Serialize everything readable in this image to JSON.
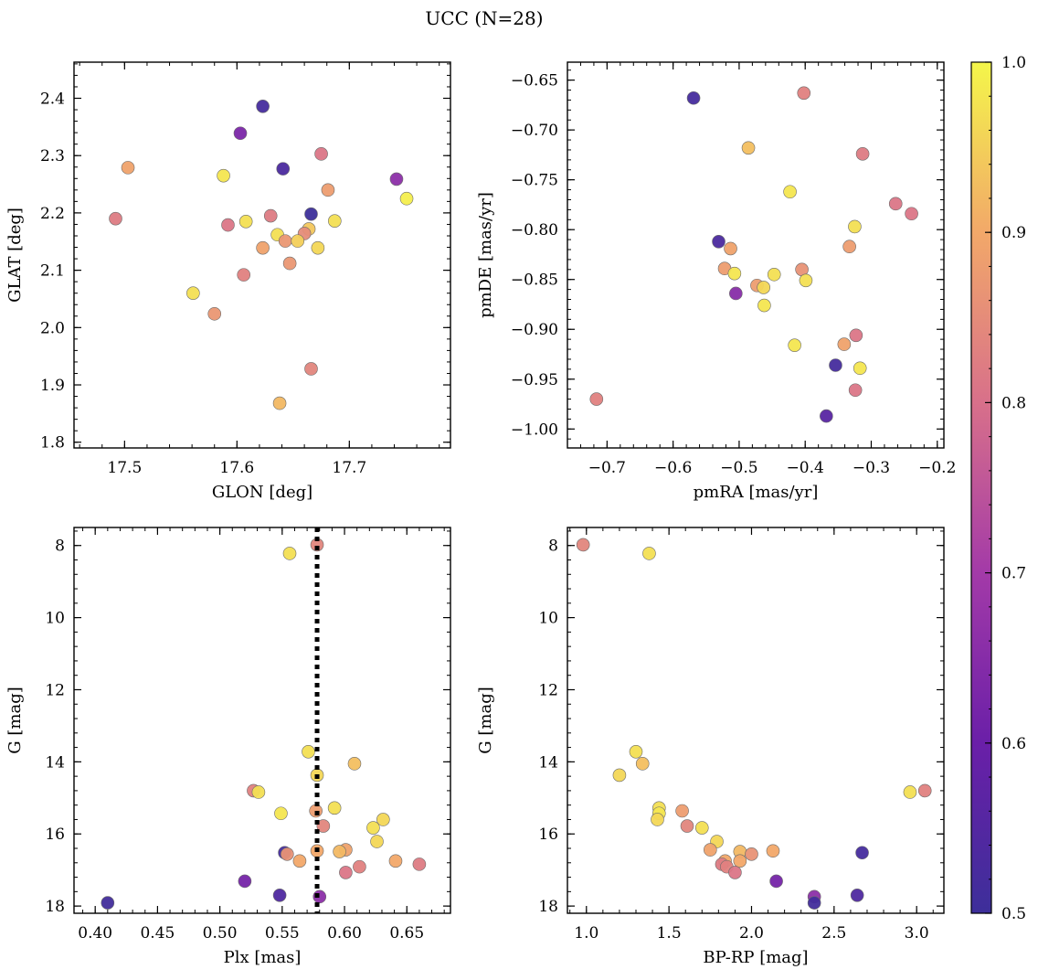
{
  "chart_data": {
    "title": "UCC (N=28)",
    "colorbar": {
      "vmin": 0.5,
      "vmax": 1.0,
      "colormap": "plasma",
      "ticks": [
        0.5,
        0.6,
        0.7,
        0.8,
        0.9,
        1.0
      ],
      "tick_labels": [
        "0.5",
        "0.6",
        "0.7",
        "0.8",
        "0.9",
        "1.0"
      ]
    },
    "panels": [
      {
        "id": "glon-glat",
        "type": "scatter",
        "xlabel": "GLON [deg]",
        "ylabel": "GLAT [deg]",
        "xlim": [
          17.455,
          17.79
        ],
        "ylim": [
          1.79,
          2.463
        ],
        "xticks": [
          17.5,
          17.6,
          17.7
        ],
        "xtick_labels": [
          "17.5",
          "17.6",
          "17.7"
        ],
        "yticks": [
          1.8,
          1.9,
          2.0,
          2.1,
          2.2,
          2.3,
          2.4
        ],
        "ytick_labels": [
          "1.8",
          "1.9",
          "2.0",
          "2.1",
          "2.2",
          "2.3",
          "2.4"
        ],
        "invert_y": false,
        "points": [
          {
            "x": 17.623,
            "y": 2.386,
            "c": 0.52
          },
          {
            "x": 17.603,
            "y": 2.339,
            "c": 0.63
          },
          {
            "x": 17.675,
            "y": 2.303,
            "c": 0.81
          },
          {
            "x": 17.641,
            "y": 2.277,
            "c": 0.53
          },
          {
            "x": 17.503,
            "y": 2.279,
            "c": 0.89
          },
          {
            "x": 17.588,
            "y": 2.265,
            "c": 0.98
          },
          {
            "x": 17.742,
            "y": 2.259,
            "c": 0.66
          },
          {
            "x": 17.681,
            "y": 2.24,
            "c": 0.88
          },
          {
            "x": 17.751,
            "y": 2.225,
            "c": 0.99
          },
          {
            "x": 17.666,
            "y": 2.198,
            "c": 0.5
          },
          {
            "x": 17.63,
            "y": 2.195,
            "c": 0.82
          },
          {
            "x": 17.492,
            "y": 2.19,
            "c": 0.82
          },
          {
            "x": 17.608,
            "y": 2.185,
            "c": 0.97
          },
          {
            "x": 17.687,
            "y": 2.186,
            "c": 0.97
          },
          {
            "x": 17.592,
            "y": 2.179,
            "c": 0.81
          },
          {
            "x": 17.664,
            "y": 2.172,
            "c": 0.94
          },
          {
            "x": 17.66,
            "y": 2.164,
            "c": 0.85
          },
          {
            "x": 17.636,
            "y": 2.162,
            "c": 0.97
          },
          {
            "x": 17.643,
            "y": 2.151,
            "c": 0.87
          },
          {
            "x": 17.654,
            "y": 2.151,
            "c": 0.95
          },
          {
            "x": 17.623,
            "y": 2.139,
            "c": 0.89
          },
          {
            "x": 17.672,
            "y": 2.139,
            "c": 0.96
          },
          {
            "x": 17.647,
            "y": 2.112,
            "c": 0.87
          },
          {
            "x": 17.606,
            "y": 2.092,
            "c": 0.83
          },
          {
            "x": 17.561,
            "y": 2.06,
            "c": 0.97
          },
          {
            "x": 17.58,
            "y": 2.024,
            "c": 0.87
          },
          {
            "x": 17.666,
            "y": 1.928,
            "c": 0.84
          },
          {
            "x": 17.638,
            "y": 1.868,
            "c": 0.92
          }
        ]
      },
      {
        "id": "pmra-pmde",
        "type": "scatter",
        "xlabel": "pmRA [mas/yr]",
        "ylabel": "pmDE [mas/yr]",
        "xlim": [
          -0.76,
          -0.19
        ],
        "ylim": [
          -1.019,
          -0.632
        ],
        "xticks": [
          -0.7,
          -0.6,
          -0.5,
          -0.4,
          -0.3,
          -0.2
        ],
        "xtick_labels": [
          "−0.7",
          "−0.6",
          "−0.5",
          "−0.4",
          "−0.3",
          "−0.2"
        ],
        "yticks": [
          -1.0,
          -0.95,
          -0.9,
          -0.85,
          -0.8,
          -0.75,
          -0.7,
          -0.65
        ],
        "ytick_labels": [
          "−1.00",
          "−0.95",
          "−0.90",
          "−0.85",
          "−0.80",
          "−0.75",
          "−0.70",
          "−0.65"
        ],
        "invert_y": false,
        "points": [
          {
            "x": -0.569,
            "y": -0.668,
            "c": 0.52
          },
          {
            "x": -0.402,
            "y": -0.663,
            "c": 0.83
          },
          {
            "x": -0.486,
            "y": -0.718,
            "c": 0.93
          },
          {
            "x": -0.313,
            "y": -0.724,
            "c": 0.82
          },
          {
            "x": -0.423,
            "y": -0.762,
            "c": 0.98
          },
          {
            "x": -0.263,
            "y": -0.774,
            "c": 0.81
          },
          {
            "x": -0.239,
            "y": -0.784,
            "c": 0.81
          },
          {
            "x": -0.325,
            "y": -0.797,
            "c": 0.97
          },
          {
            "x": -0.531,
            "y": -0.812,
            "c": 0.53
          },
          {
            "x": -0.513,
            "y": -0.819,
            "c": 0.89
          },
          {
            "x": -0.333,
            "y": -0.817,
            "c": 0.88
          },
          {
            "x": -0.522,
            "y": -0.839,
            "c": 0.88
          },
          {
            "x": -0.405,
            "y": -0.84,
            "c": 0.86
          },
          {
            "x": -0.507,
            "y": -0.844,
            "c": 0.98
          },
          {
            "x": -0.447,
            "y": -0.845,
            "c": 0.97
          },
          {
            "x": -0.399,
            "y": -0.851,
            "c": 0.97
          },
          {
            "x": -0.473,
            "y": -0.856,
            "c": 0.88
          },
          {
            "x": -0.463,
            "y": -0.858,
            "c": 0.96
          },
          {
            "x": -0.505,
            "y": -0.864,
            "c": 0.65
          },
          {
            "x": -0.462,
            "y": -0.876,
            "c": 0.98
          },
          {
            "x": -0.323,
            "y": -0.906,
            "c": 0.81
          },
          {
            "x": -0.416,
            "y": -0.916,
            "c": 0.98
          },
          {
            "x": -0.341,
            "y": -0.915,
            "c": 0.89
          },
          {
            "x": -0.354,
            "y": -0.936,
            "c": 0.52
          },
          {
            "x": -0.317,
            "y": -0.939,
            "c": 0.98
          },
          {
            "x": -0.716,
            "y": -0.97,
            "c": 0.83
          },
          {
            "x": -0.324,
            "y": -0.961,
            "c": 0.81
          },
          {
            "x": -0.368,
            "y": -0.987,
            "c": 0.56
          }
        ]
      },
      {
        "id": "plx-g",
        "type": "scatter",
        "xlabel": "Plx [mas]",
        "ylabel": "G [mag]",
        "xlim": [
          0.383,
          0.685
        ],
        "ylim": [
          18.2,
          7.5
        ],
        "xticks": [
          0.4,
          0.45,
          0.5,
          0.55,
          0.6,
          0.65
        ],
        "xtick_labels": [
          "0.40",
          "0.45",
          "0.50",
          "0.55",
          "0.60",
          "0.65"
        ],
        "yticks": [
          8,
          10,
          12,
          14,
          16,
          18
        ],
        "ytick_labels": [
          "8",
          "10",
          "12",
          "14",
          "16",
          "18"
        ],
        "invert_y": true,
        "vline": {
          "x": 0.578,
          "style": "dotted"
        },
        "points": [
          {
            "x": 0.578,
            "y": 7.98,
            "c": 0.84
          },
          {
            "x": 0.556,
            "y": 8.22,
            "c": 0.97
          },
          {
            "x": 0.571,
            "y": 13.72,
            "c": 0.97
          },
          {
            "x": 0.608,
            "y": 14.05,
            "c": 0.93
          },
          {
            "x": 0.578,
            "y": 14.37,
            "c": 0.96
          },
          {
            "x": 0.527,
            "y": 14.8,
            "c": 0.83
          },
          {
            "x": 0.531,
            "y": 14.84,
            "c": 0.97
          },
          {
            "x": 0.592,
            "y": 15.28,
            "c": 0.97
          },
          {
            "x": 0.577,
            "y": 15.36,
            "c": 0.88
          },
          {
            "x": 0.549,
            "y": 15.43,
            "c": 0.98
          },
          {
            "x": 0.631,
            "y": 15.6,
            "c": 0.96
          },
          {
            "x": 0.583,
            "y": 15.78,
            "c": 0.84
          },
          {
            "x": 0.623,
            "y": 15.83,
            "c": 0.97
          },
          {
            "x": 0.626,
            "y": 16.21,
            "c": 0.96
          },
          {
            "x": 0.601,
            "y": 16.44,
            "c": 0.89
          },
          {
            "x": 0.578,
            "y": 16.47,
            "c": 0.9
          },
          {
            "x": 0.596,
            "y": 16.49,
            "c": 0.92
          },
          {
            "x": 0.552,
            "y": 16.52,
            "c": 0.52
          },
          {
            "x": 0.554,
            "y": 16.56,
            "c": 0.86
          },
          {
            "x": 0.564,
            "y": 16.75,
            "c": 0.9
          },
          {
            "x": 0.641,
            "y": 16.75,
            "c": 0.9
          },
          {
            "x": 0.66,
            "y": 16.84,
            "c": 0.82
          },
          {
            "x": 0.612,
            "y": 16.91,
            "c": 0.83
          },
          {
            "x": 0.601,
            "y": 17.07,
            "c": 0.81
          },
          {
            "x": 0.52,
            "y": 17.31,
            "c": 0.62
          },
          {
            "x": 0.548,
            "y": 17.7,
            "c": 0.54
          },
          {
            "x": 0.58,
            "y": 17.74,
            "c": 0.66
          },
          {
            "x": 0.41,
            "y": 17.91,
            "c": 0.51
          }
        ]
      },
      {
        "id": "bprp-g",
        "type": "scatter",
        "xlabel": "BP-RP [mag]",
        "ylabel": "G [mag]",
        "xlim": [
          0.885,
          3.165
        ],
        "ylim": [
          18.2,
          7.5
        ],
        "xticks": [
          1.0,
          1.5,
          2.0,
          2.5,
          3.0
        ],
        "xtick_labels": [
          "1.0",
          "1.5",
          "2.0",
          "2.5",
          "3.0"
        ],
        "yticks": [
          8,
          10,
          12,
          14,
          16,
          18
        ],
        "ytick_labels": [
          "8",
          "10",
          "12",
          "14",
          "16",
          "18"
        ],
        "invert_y": true,
        "points": [
          {
            "x": 0.98,
            "y": 7.98,
            "c": 0.84
          },
          {
            "x": 1.38,
            "y": 8.22,
            "c": 0.97
          },
          {
            "x": 1.3,
            "y": 13.72,
            "c": 0.97
          },
          {
            "x": 1.34,
            "y": 14.05,
            "c": 0.93
          },
          {
            "x": 1.2,
            "y": 14.37,
            "c": 0.96
          },
          {
            "x": 3.05,
            "y": 14.8,
            "c": 0.83
          },
          {
            "x": 2.96,
            "y": 14.84,
            "c": 0.97
          },
          {
            "x": 1.44,
            "y": 15.28,
            "c": 0.97
          },
          {
            "x": 1.58,
            "y": 15.36,
            "c": 0.88
          },
          {
            "x": 1.44,
            "y": 15.43,
            "c": 0.98
          },
          {
            "x": 1.43,
            "y": 15.6,
            "c": 0.96
          },
          {
            "x": 1.61,
            "y": 15.78,
            "c": 0.84
          },
          {
            "x": 1.7,
            "y": 15.83,
            "c": 0.97
          },
          {
            "x": 1.79,
            "y": 16.21,
            "c": 0.96
          },
          {
            "x": 1.75,
            "y": 16.44,
            "c": 0.89
          },
          {
            "x": 2.13,
            "y": 16.47,
            "c": 0.9
          },
          {
            "x": 1.93,
            "y": 16.49,
            "c": 0.92
          },
          {
            "x": 2.67,
            "y": 16.52,
            "c": 0.52
          },
          {
            "x": 2.0,
            "y": 16.56,
            "c": 0.86
          },
          {
            "x": 1.84,
            "y": 16.75,
            "c": 0.9
          },
          {
            "x": 1.93,
            "y": 16.75,
            "c": 0.9
          },
          {
            "x": 1.82,
            "y": 16.84,
            "c": 0.82
          },
          {
            "x": 1.85,
            "y": 16.91,
            "c": 0.83
          },
          {
            "x": 1.9,
            "y": 17.07,
            "c": 0.81
          },
          {
            "x": 2.15,
            "y": 17.31,
            "c": 0.62
          },
          {
            "x": 2.64,
            "y": 17.7,
            "c": 0.54
          },
          {
            "x": 2.38,
            "y": 17.74,
            "c": 0.66
          },
          {
            "x": 2.38,
            "y": 17.91,
            "c": 0.51
          }
        ]
      }
    ]
  }
}
